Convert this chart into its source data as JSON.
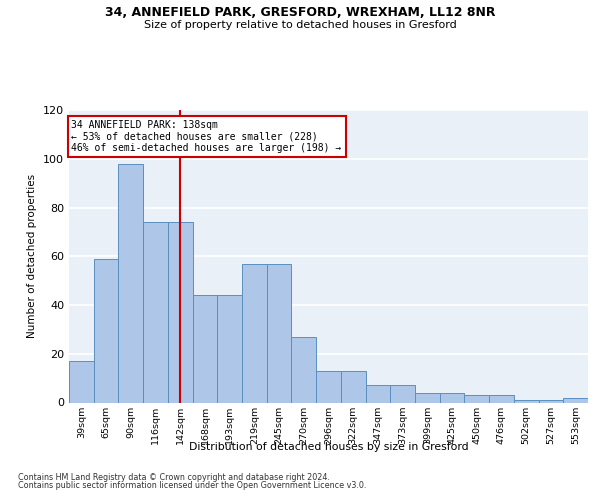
{
  "title1": "34, ANNEFIELD PARK, GRESFORD, WREXHAM, LL12 8NR",
  "title2": "Size of property relative to detached houses in Gresford",
  "xlabel": "Distribution of detached houses by size in Gresford",
  "ylabel": "Number of detached properties",
  "categories": [
    "39sqm",
    "65sqm",
    "90sqm",
    "116sqm",
    "142sqm",
    "168sqm",
    "193sqm",
    "219sqm",
    "245sqm",
    "270sqm",
    "296sqm",
    "322sqm",
    "347sqm",
    "373sqm",
    "399sqm",
    "425sqm",
    "450sqm",
    "476sqm",
    "502sqm",
    "527sqm",
    "553sqm"
  ],
  "bar_heights": [
    17,
    59,
    98,
    74,
    74,
    44,
    44,
    57,
    57,
    27,
    13,
    13,
    7,
    7,
    4,
    4,
    3,
    3,
    1,
    1,
    2
  ],
  "ylim": [
    0,
    120
  ],
  "yticks": [
    0,
    20,
    40,
    60,
    80,
    100,
    120
  ],
  "bar_color": "#aec6e8",
  "bar_edge_color": "#5a8fc0",
  "vline_category": "142sqm",
  "vline_color": "#cc0000",
  "annotation_title": "34 ANNEFIELD PARK: 138sqm",
  "annotation_line1": "← 53% of detached houses are smaller (228)",
  "annotation_line2": "46% of semi-detached houses are larger (198) →",
  "footer1": "Contains HM Land Registry data © Crown copyright and database right 2024.",
  "footer2": "Contains public sector information licensed under the Open Government Licence v3.0.",
  "bg_color": "#eaf0f8"
}
